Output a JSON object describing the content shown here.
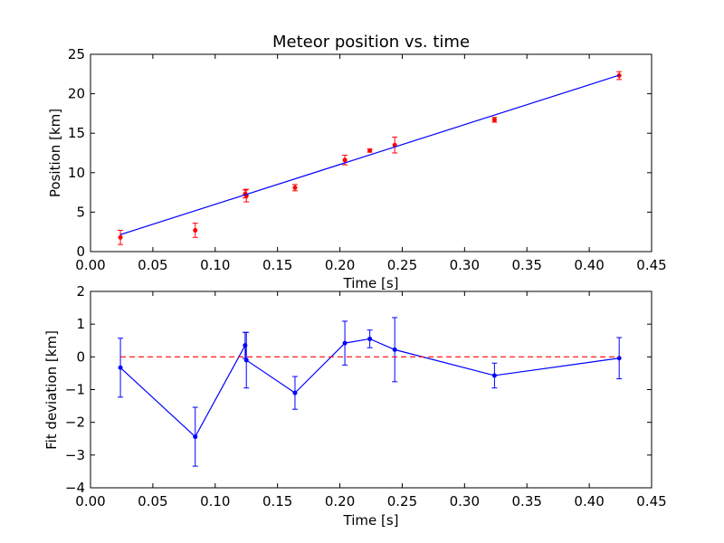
{
  "chart_data": [
    {
      "type": "scatter",
      "title": "Meteor position vs. time",
      "xlabel": "Time [s]",
      "ylabel": "Position [km]",
      "xlim": [
        0.0,
        0.45
      ],
      "ylim": [
        0,
        25
      ],
      "xticks": [
        "0.00",
        "0.05",
        "0.10",
        "0.15",
        "0.20",
        "0.25",
        "0.30",
        "0.35",
        "0.40",
        "0.45"
      ],
      "yticks": [
        "0",
        "5",
        "10",
        "15",
        "20",
        "25"
      ],
      "grid": false,
      "series": [
        {
          "kind": "points-with-errorbars",
          "color": "#ff0000",
          "x": [
            0.024,
            0.084,
            0.124,
            0.125,
            0.164,
            0.204,
            0.224,
            0.244,
            0.324,
            0.424
          ],
          "y": [
            1.8,
            2.7,
            7.3,
            7.1,
            8.1,
            11.6,
            12.8,
            13.5,
            16.7,
            22.3
          ],
          "yerr": [
            0.9,
            0.9,
            0.5,
            0.8,
            0.4,
            0.6,
            0.2,
            1.0,
            0.3,
            0.5
          ]
        },
        {
          "kind": "fit-line",
          "color": "#0000ff",
          "x": [
            0.024,
            0.424
          ],
          "y": [
            2.15,
            22.35
          ]
        }
      ]
    },
    {
      "type": "line",
      "title": "",
      "xlabel": "Time [s]",
      "ylabel": "Fit deviation [km]",
      "xlim": [
        0.0,
        0.45
      ],
      "ylim": [
        -4,
        2
      ],
      "xticks": [
        "0.00",
        "0.05",
        "0.10",
        "0.15",
        "0.20",
        "0.25",
        "0.30",
        "0.35",
        "0.40",
        "0.45"
      ],
      "yticks": [
        "−4",
        "−3",
        "−2",
        "−1",
        "0",
        "1",
        "2"
      ],
      "grid": false,
      "series": [
        {
          "kind": "line-with-errorbars",
          "color": "#0000ff",
          "x": [
            0.024,
            0.084,
            0.124,
            0.125,
            0.164,
            0.204,
            0.224,
            0.244,
            0.324,
            0.424
          ],
          "y": [
            -0.33,
            -2.44,
            0.35,
            -0.1,
            -1.1,
            0.42,
            0.55,
            0.22,
            -0.57,
            -0.04
          ],
          "yerr": [
            0.9,
            0.9,
            0.4,
            0.85,
            0.5,
            0.67,
            0.27,
            0.98,
            0.38,
            0.63
          ]
        },
        {
          "kind": "zero-reference",
          "color": "#ff0000",
          "dashed": true,
          "x": [
            0.024,
            0.424
          ],
          "y": [
            0,
            0
          ]
        }
      ]
    }
  ]
}
